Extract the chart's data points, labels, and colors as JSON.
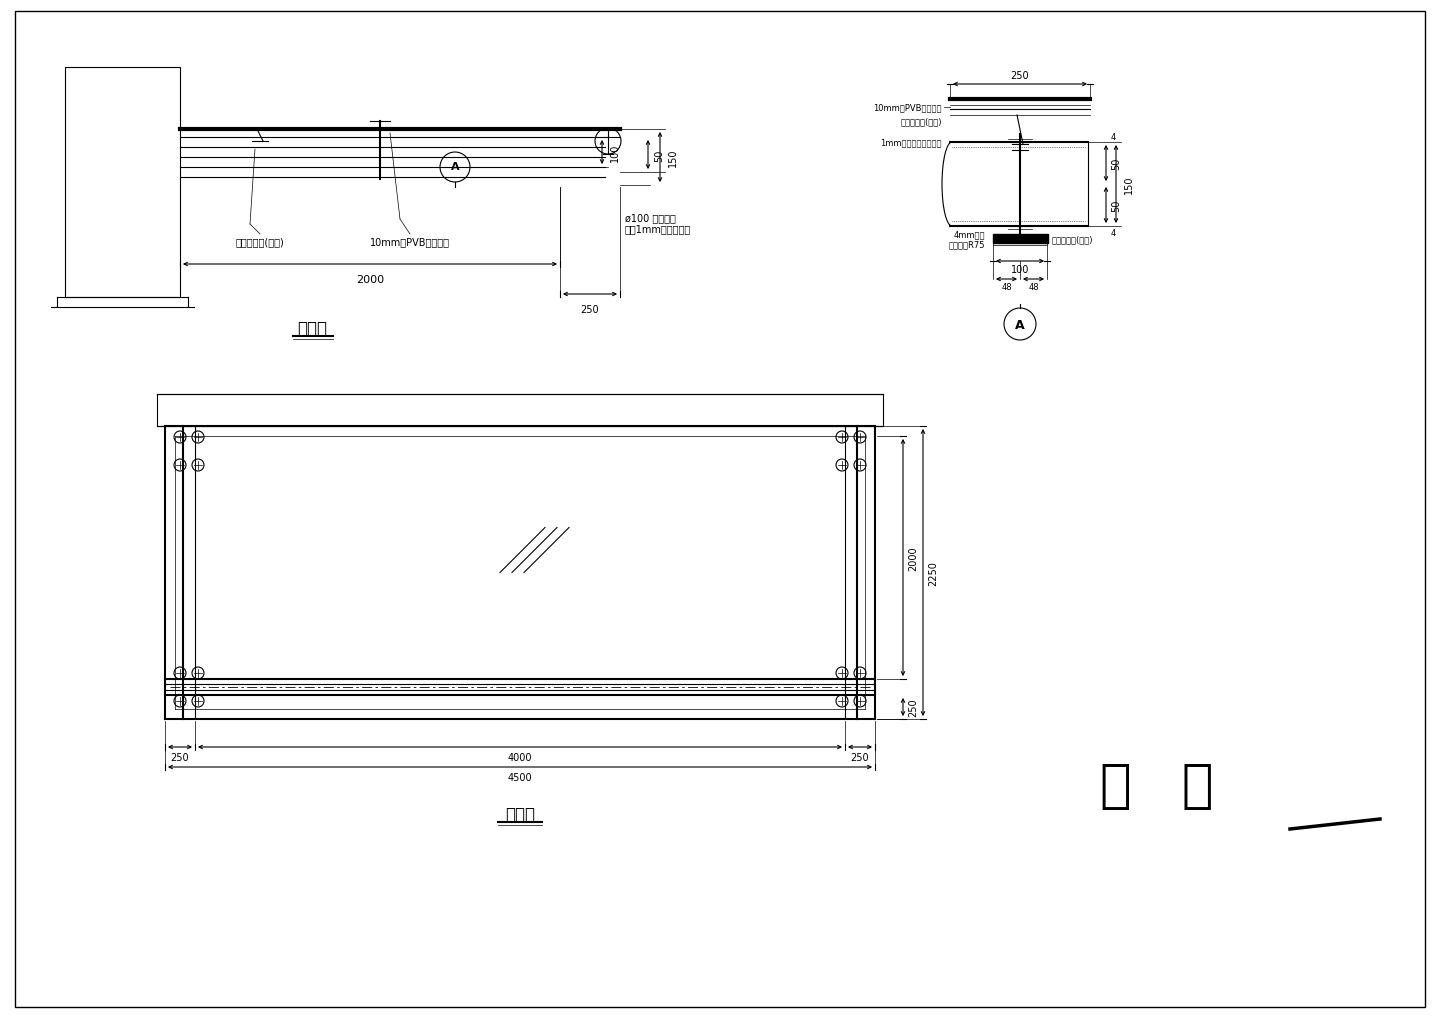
{
  "bg_color": "#ffffff",
  "line_color": "#000000",
  "title_side": "侧立面",
  "title_plan": "平面图",
  "label_glass": "玻璃胶密封(硅酮)",
  "label_pvb": "10mm厚PVB夹层玻璃",
  "label_pipe": "ø100 镀锌钢管\n外套1mm厚不锈钢管",
  "label_detail_pvb": "10mm厚PVB夹层玻璃",
  "label_detail_glass": "玻璃胶密封(硅酮)",
  "label_detail_1mm": "1mm厚不锈钢板封堵板",
  "label_detail_4mm": "4mm铝板\n填缝宽度R75",
  "label_detail_rubber": "硅酮密封胶(外封)",
  "scheme_text": "方   案",
  "scheme_num": "一"
}
